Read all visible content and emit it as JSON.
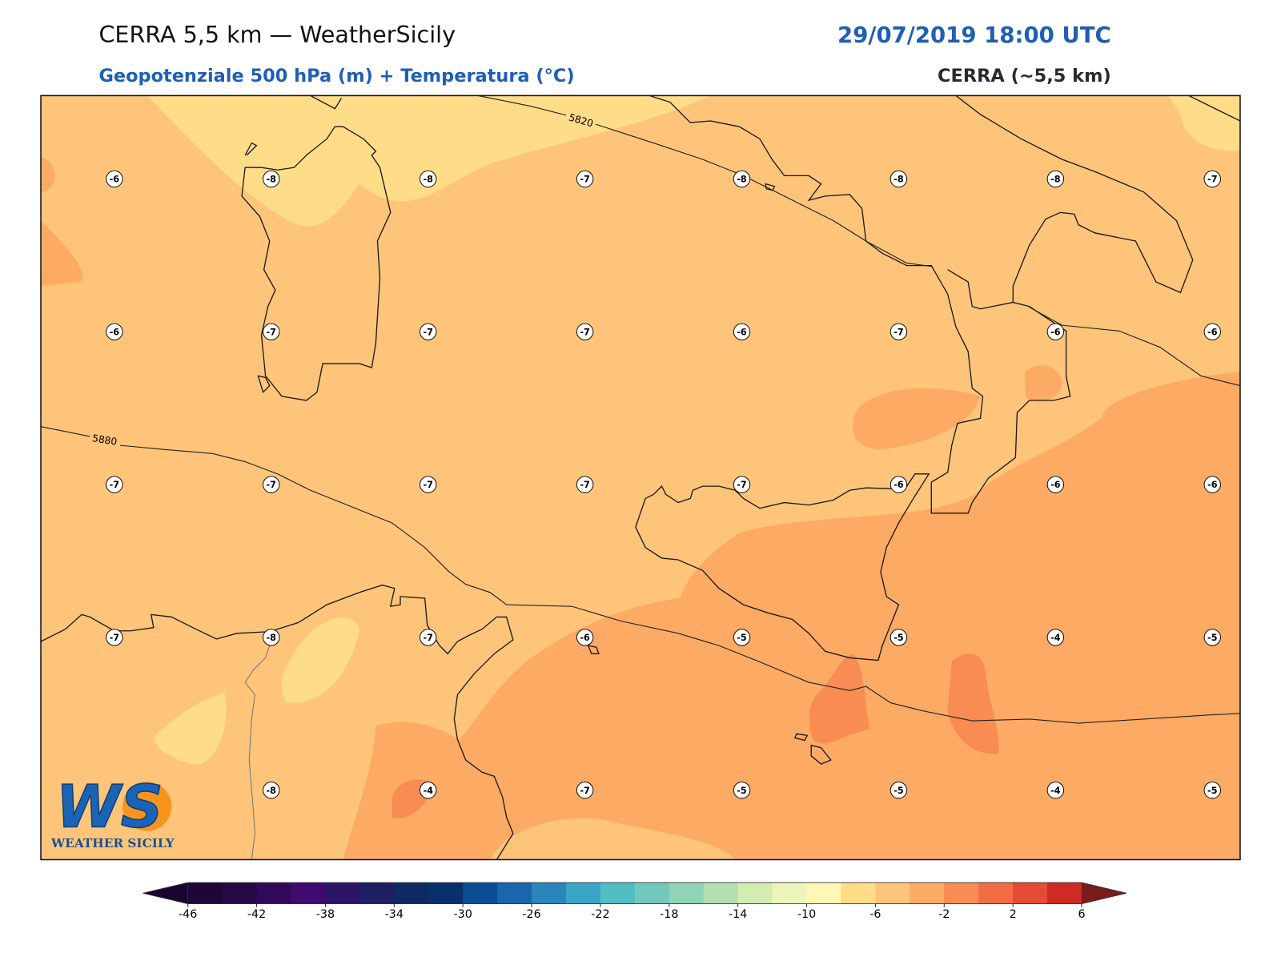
{
  "header": {
    "title": "CERRA 5,5 km — WeatherSicily",
    "datetime": "29/07/2019 18:00 UTC",
    "subtitle": "Geopotenziale 500 hPa (m) + Temperatura (°C)",
    "model": "CERRA (~5,5 km)"
  },
  "map": {
    "contours": [
      5820,
      5880
    ],
    "temperature_grid": [
      [
        -6,
        -8,
        -8,
        -7,
        -8,
        -8,
        -8,
        -7
      ],
      [
        -6,
        -7,
        -7,
        -7,
        -6,
        -7,
        -6,
        -6
      ],
      [
        -7,
        -7,
        -7,
        -7,
        -7,
        -6,
        -6,
        -6
      ],
      [
        -7,
        -8,
        -7,
        -6,
        -5,
        -5,
        -4,
        -5
      ],
      [
        null,
        -8,
        -4,
        -7,
        -5,
        -5,
        -4,
        -5
      ]
    ]
  },
  "colorbar": {
    "boundaries": [
      -46,
      -44,
      -42,
      -40,
      -38,
      -36,
      -34,
      -32,
      -30,
      -28,
      -26,
      -24,
      -22,
      -20,
      -18,
      -16,
      -14,
      -12,
      -10,
      -8,
      -6,
      -4,
      -2,
      0,
      2,
      4,
      6
    ],
    "colors": [
      "#1f0638",
      "#260845",
      "#330a5a",
      "#400a70",
      "#2c1568",
      "#1e1e64",
      "#0e2a62",
      "#08306b",
      "#0b4d94",
      "#1a66ac",
      "#2a85bb",
      "#3aa5c7",
      "#52bdc2",
      "#72c8bc",
      "#90d4b8",
      "#b2e0b0",
      "#d2ecb2",
      "#ecf6bc",
      "#fff7b4",
      "#fedc88",
      "#fdc47a",
      "#fcaa64",
      "#f88c52",
      "#f26c44",
      "#e44c34",
      "#d02a24"
    ],
    "extend_colors": [
      "#1a0530",
      "#7a1c1c"
    ],
    "ticks": [
      -46,
      -42,
      -38,
      -34,
      -30,
      -26,
      -22,
      -18,
      -14,
      -10,
      -6,
      -2,
      2,
      6
    ]
  },
  "logo": {
    "mark": "WS",
    "text": "WEATHER SICILY"
  }
}
